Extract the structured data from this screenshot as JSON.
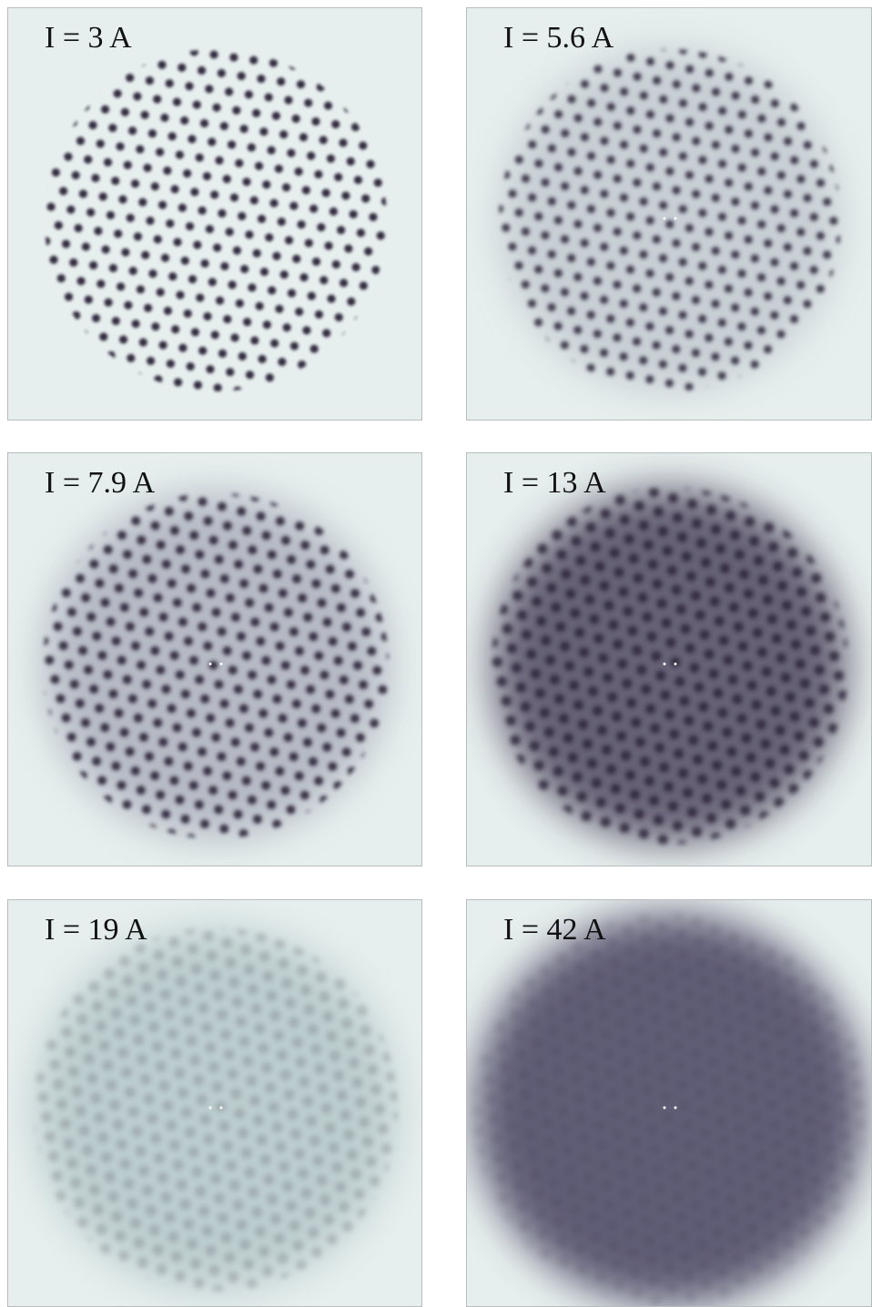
{
  "panels": [
    {
      "label": "I = 3 A"
    },
    {
      "label": "I = 5.6 A"
    },
    {
      "label": "I = 7.9 A"
    },
    {
      "label": "I = 13 A"
    },
    {
      "label": "I = 19 A"
    },
    {
      "label": "I = 42 A"
    }
  ]
}
